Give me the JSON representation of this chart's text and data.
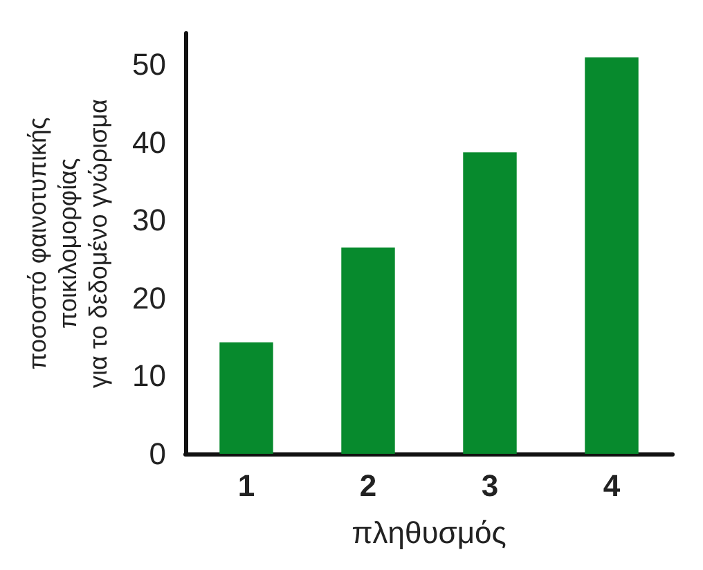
{
  "chart_data": {
    "type": "bar",
    "xlabel": "πληθυσμός",
    "ylabel": "ποσοστό φαινοτυπικής\nποικιλομορφίας\nγια το δεδομένο γνώρισμα",
    "categories": [
      "1",
      "2",
      "3",
      "4"
    ],
    "values": [
      14.3,
      26.5,
      38.7,
      50.9
    ],
    "color": "#078a2d",
    "ylim": [
      0,
      54
    ],
    "yticks": [
      0,
      10,
      20,
      30,
      40,
      50
    ],
    "grid": false
  }
}
